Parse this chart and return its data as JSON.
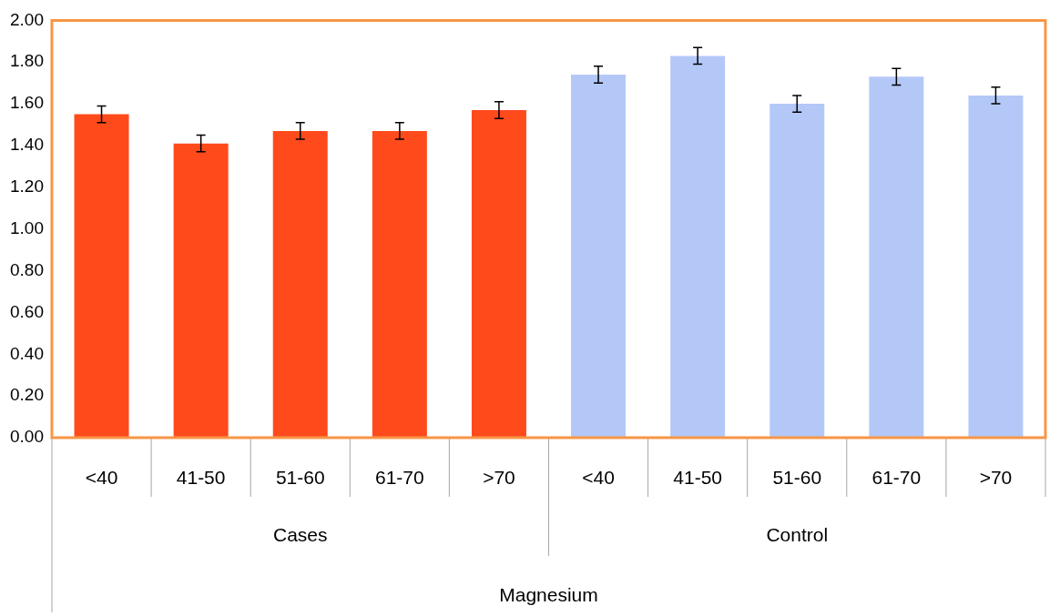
{
  "chart_data": {
    "type": "bar",
    "annotations": [
      "Cases",
      "Control",
      "Magnesium"
    ],
    "categories": [
      "<40",
      "41-50",
      "51-60",
      "61-70",
      ">70",
      "<40",
      "41-50",
      "51-60",
      "61-70",
      ">70"
    ],
    "series": [
      {
        "color": "#ff4a1c",
        "values": [
          1.55,
          1.41,
          1.47,
          1.47,
          1.57,
          null,
          null,
          null,
          null,
          null
        ],
        "errors": [
          0.04,
          0.04,
          0.04,
          0.04,
          0.04,
          null,
          null,
          null,
          null,
          null
        ]
      },
      {
        "color": "#b4c8f8",
        "values": [
          null,
          null,
          null,
          null,
          null,
          1.74,
          1.83,
          1.6,
          1.73,
          1.64
        ],
        "errors": [
          null,
          null,
          null,
          null,
          null,
          0.04,
          0.04,
          0.04,
          0.04,
          0.04
        ]
      }
    ],
    "ylim": [
      0,
      2
    ],
    "yticks": [
      {
        "value": 0,
        "label": "0.00"
      },
      {
        "value": 0.2,
        "label": "0.20"
      },
      {
        "value": 0.4,
        "label": "0.40"
      },
      {
        "value": 0.6,
        "label": "0.60"
      },
      {
        "value": 0.8,
        "label": "0.80"
      },
      {
        "value": 1,
        "label": "1.00"
      },
      {
        "value": 1.2,
        "label": "1.20"
      },
      {
        "value": 1.4,
        "label": "1.40"
      },
      {
        "value": 1.6,
        "label": "1.60"
      },
      {
        "value": 1.8,
        "label": "1.80"
      },
      {
        "value": 2,
        "label": "2.00"
      }
    ],
    "grid": false,
    "legend": false
  }
}
